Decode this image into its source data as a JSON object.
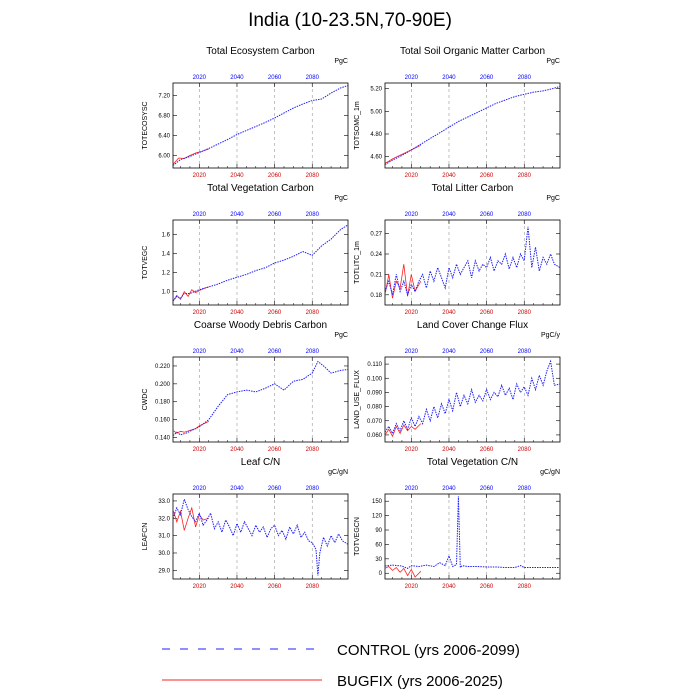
{
  "figure": {
    "title": "India (10-23.5N,70-90E)",
    "colors": {
      "control": "#1f1fff",
      "bugfix": "#ff2020",
      "control_years": "#cc0000",
      "top_years": "#0000ff"
    },
    "legend": [
      {
        "label": "CONTROL (yrs 2006-2099)",
        "color": "#1f1fff",
        "dash": true
      },
      {
        "label": "BUGFIX (yrs 2006-2025)",
        "color": "#ff2020",
        "dash": false
      }
    ]
  },
  "chart_data": [
    {
      "type": "line",
      "title": "Total Ecosystem Carbon",
      "ylabel": "TOTECOSYSC",
      "unit": "PgC",
      "xlim": [
        2006,
        2099
      ],
      "ylim": [
        5.75,
        7.45
      ],
      "yticks": [
        6.0,
        6.4,
        6.8,
        7.2
      ],
      "ytick_labels": [
        "6.00",
        "6.40",
        "6.80",
        "7.20"
      ],
      "xticks": [
        2020,
        2040,
        2060,
        2080
      ],
      "grid": "x-dashed",
      "series": [
        {
          "key": "control",
          "x": [
            2006,
            2010,
            2015,
            2020,
            2025,
            2030,
            2035,
            2040,
            2045,
            2050,
            2055,
            2060,
            2065,
            2070,
            2075,
            2080,
            2085,
            2090,
            2095,
            2099
          ],
          "y": [
            5.8,
            5.92,
            5.98,
            6.06,
            6.14,
            6.23,
            6.32,
            6.42,
            6.5,
            6.58,
            6.66,
            6.75,
            6.85,
            6.95,
            7.03,
            7.1,
            7.13,
            7.25,
            7.35,
            7.4
          ]
        },
        {
          "key": "bugfix",
          "x": [
            2006,
            2009,
            2012,
            2015,
            2018,
            2021,
            2025
          ],
          "y": [
            5.82,
            5.95,
            5.94,
            6.0,
            6.05,
            6.08,
            6.13
          ]
        }
      ]
    },
    {
      "type": "line",
      "title": "Total Soil Organic Matter Carbon",
      "ylabel": "TOTSOMC_1m",
      "unit": "PgC",
      "xlim": [
        2006,
        2099
      ],
      "ylim": [
        4.5,
        5.25
      ],
      "yticks": [
        4.6,
        4.8,
        5.0,
        5.2
      ],
      "ytick_labels": [
        "4.60",
        "4.80",
        "5.00",
        "5.20"
      ],
      "xticks": [
        2020,
        2040,
        2060,
        2080
      ],
      "grid": "x-dashed",
      "series": [
        {
          "key": "control",
          "x": [
            2006,
            2010,
            2015,
            2020,
            2025,
            2030,
            2035,
            2040,
            2045,
            2050,
            2055,
            2060,
            2065,
            2070,
            2075,
            2080,
            2085,
            2090,
            2095,
            2099
          ],
          "y": [
            4.53,
            4.57,
            4.61,
            4.66,
            4.71,
            4.76,
            4.81,
            4.86,
            4.91,
            4.95,
            4.99,
            5.03,
            5.07,
            5.1,
            5.13,
            5.15,
            5.17,
            5.18,
            5.2,
            5.22
          ]
        },
        {
          "key": "bugfix",
          "x": [
            2006,
            2010,
            2015,
            2020,
            2025
          ],
          "y": [
            4.54,
            4.58,
            4.62,
            4.66,
            4.7
          ]
        }
      ]
    },
    {
      "type": "line",
      "title": "Total Vegetation Carbon",
      "ylabel": "TOTVEGC",
      "unit": "PgC",
      "xlim": [
        2006,
        2099
      ],
      "ylim": [
        0.86,
        1.75
      ],
      "yticks": [
        1.0,
        1.2,
        1.4,
        1.6
      ],
      "ytick_labels": [
        "1.0",
        "1.2",
        "1.4",
        "1.6"
      ],
      "xticks": [
        2020,
        2040,
        2060,
        2080
      ],
      "grid": "x-dashed",
      "series": [
        {
          "key": "control",
          "x": [
            2006,
            2008,
            2010,
            2012,
            2015,
            2020,
            2025,
            2030,
            2035,
            2040,
            2045,
            2050,
            2055,
            2060,
            2065,
            2070,
            2075,
            2080,
            2085,
            2090,
            2095,
            2099
          ],
          "y": [
            0.9,
            0.95,
            0.93,
            0.98,
            0.98,
            1.02,
            1.05,
            1.08,
            1.12,
            1.15,
            1.18,
            1.22,
            1.25,
            1.3,
            1.33,
            1.37,
            1.42,
            1.38,
            1.48,
            1.55,
            1.65,
            1.7
          ]
        },
        {
          "key": "bugfix",
          "x": [
            2006,
            2008,
            2010,
            2012,
            2014,
            2016,
            2018,
            2020,
            2022,
            2025
          ],
          "y": [
            0.9,
            0.96,
            0.92,
            1.0,
            0.95,
            1.02,
            0.99,
            1.01,
            1.03,
            1.05
          ]
        }
      ]
    },
    {
      "type": "line",
      "title": "Total Litter Carbon",
      "ylabel": "TOTLITC_1m",
      "unit": "PgC",
      "xlim": [
        2006,
        2099
      ],
      "ylim": [
        0.165,
        0.29
      ],
      "yticks": [
        0.18,
        0.21,
        0.24,
        0.27
      ],
      "ytick_labels": [
        "0.18",
        "0.21",
        "0.24",
        "0.27"
      ],
      "xticks": [
        2020,
        2040,
        2060,
        2080
      ],
      "grid": "x-dashed",
      "series": [
        {
          "key": "control",
          "x": [
            2006,
            2008,
            2010,
            2012,
            2014,
            2016,
            2018,
            2020,
            2022,
            2024,
            2026,
            2028,
            2030,
            2032,
            2034,
            2036,
            2038,
            2040,
            2042,
            2044,
            2046,
            2048,
            2050,
            2052,
            2054,
            2056,
            2058,
            2060,
            2062,
            2064,
            2066,
            2068,
            2070,
            2072,
            2074,
            2076,
            2078,
            2080,
            2082,
            2084,
            2086,
            2088,
            2090,
            2092,
            2094,
            2096,
            2099
          ],
          "y": [
            0.185,
            0.2,
            0.18,
            0.21,
            0.185,
            0.2,
            0.18,
            0.195,
            0.185,
            0.2,
            0.21,
            0.19,
            0.215,
            0.2,
            0.22,
            0.205,
            0.19,
            0.22,
            0.205,
            0.225,
            0.21,
            0.22,
            0.23,
            0.205,
            0.23,
            0.215,
            0.225,
            0.22,
            0.235,
            0.215,
            0.23,
            0.225,
            0.24,
            0.218,
            0.235,
            0.22,
            0.24,
            0.23,
            0.28,
            0.22,
            0.25,
            0.215,
            0.235,
            0.225,
            0.24,
            0.225,
            0.22
          ]
        },
        {
          "key": "bugfix",
          "x": [
            2006,
            2008,
            2010,
            2012,
            2014,
            2016,
            2018,
            2020,
            2022,
            2025
          ],
          "y": [
            0.18,
            0.21,
            0.175,
            0.2,
            0.19,
            0.225,
            0.178,
            0.21,
            0.185,
            0.2
          ]
        }
      ]
    },
    {
      "type": "line",
      "title": "Coarse Woody Debris Carbon",
      "ylabel": "CWDC",
      "unit": "PgC",
      "xlim": [
        2006,
        2099
      ],
      "ylim": [
        0.135,
        0.23
      ],
      "yticks": [
        0.14,
        0.16,
        0.18,
        0.2,
        0.22
      ],
      "ytick_labels": [
        "0.140",
        "0.160",
        "0.180",
        "0.200",
        "0.220"
      ],
      "xticks": [
        2020,
        2040,
        2060,
        2080
      ],
      "grid": "x-dashed",
      "series": [
        {
          "key": "control",
          "x": [
            2006,
            2008,
            2010,
            2013,
            2016,
            2020,
            2025,
            2030,
            2035,
            2040,
            2045,
            2050,
            2055,
            2060,
            2065,
            2070,
            2075,
            2080,
            2083,
            2086,
            2090,
            2095,
            2099
          ],
          "y": [
            0.142,
            0.146,
            0.143,
            0.145,
            0.148,
            0.152,
            0.16,
            0.175,
            0.188,
            0.191,
            0.193,
            0.191,
            0.195,
            0.2,
            0.193,
            0.203,
            0.205,
            0.212,
            0.225,
            0.22,
            0.212,
            0.215,
            0.216
          ]
        },
        {
          "key": "bugfix",
          "x": [
            2006,
            2008,
            2010,
            2012,
            2015,
            2018,
            2020,
            2025
          ],
          "y": [
            0.148,
            0.145,
            0.147,
            0.146,
            0.148,
            0.15,
            0.153,
            0.158
          ]
        }
      ]
    },
    {
      "type": "line",
      "title": "Land Cover Change Flux",
      "ylabel": "LAND_USE_FLUX",
      "unit": "PgC/y",
      "xlim": [
        2006,
        2099
      ],
      "ylim": [
        0.055,
        0.115
      ],
      "yticks": [
        0.06,
        0.07,
        0.08,
        0.09,
        0.1,
        0.11
      ],
      "ytick_labels": [
        "0.060",
        "0.070",
        "0.080",
        "0.090",
        "0.100",
        "0.110"
      ],
      "xticks": [
        2020,
        2040,
        2060,
        2080
      ],
      "grid": "x-dashed",
      "series": [
        {
          "key": "control",
          "x": [
            2006,
            2008,
            2010,
            2012,
            2014,
            2016,
            2018,
            2020,
            2022,
            2024,
            2026,
            2028,
            2030,
            2032,
            2034,
            2036,
            2038,
            2040,
            2042,
            2044,
            2046,
            2048,
            2050,
            2052,
            2054,
            2056,
            2058,
            2060,
            2062,
            2064,
            2066,
            2068,
            2070,
            2072,
            2074,
            2076,
            2078,
            2080,
            2082,
            2084,
            2086,
            2088,
            2090,
            2092,
            2094,
            2096,
            2099
          ],
          "y": [
            0.062,
            0.066,
            0.061,
            0.068,
            0.063,
            0.07,
            0.064,
            0.072,
            0.066,
            0.073,
            0.068,
            0.078,
            0.07,
            0.08,
            0.072,
            0.082,
            0.075,
            0.085,
            0.077,
            0.09,
            0.08,
            0.088,
            0.082,
            0.092,
            0.083,
            0.088,
            0.084,
            0.092,
            0.085,
            0.09,
            0.087,
            0.095,
            0.088,
            0.093,
            0.085,
            0.096,
            0.09,
            0.094,
            0.088,
            0.1,
            0.092,
            0.102,
            0.095,
            0.105,
            0.112,
            0.095,
            0.096
          ]
        },
        {
          "key": "bugfix",
          "x": [
            2006,
            2008,
            2010,
            2012,
            2014,
            2016,
            2018,
            2020,
            2022,
            2025
          ],
          "y": [
            0.06,
            0.064,
            0.059,
            0.066,
            0.061,
            0.067,
            0.063,
            0.066,
            0.064,
            0.068
          ]
        }
      ]
    },
    {
      "type": "line",
      "title": "Leaf C/N",
      "ylabel": "LEAFCN",
      "unit": "gC/gN",
      "xlim": [
        2006,
        2099
      ],
      "ylim": [
        28.5,
        33.4
      ],
      "yticks": [
        29.0,
        30.0,
        31.0,
        32.0,
        33.0
      ],
      "ytick_labels": [
        "29.0",
        "30.0",
        "31.0",
        "32.0",
        "33.0"
      ],
      "xticks": [
        2020,
        2040,
        2060,
        2080
      ],
      "grid": "x-dashed",
      "series": [
        {
          "key": "control",
          "x": [
            2006,
            2008,
            2010,
            2012,
            2014,
            2016,
            2018,
            2020,
            2022,
            2024,
            2026,
            2028,
            2030,
            2032,
            2034,
            2036,
            2038,
            2040,
            2042,
            2044,
            2046,
            2048,
            2050,
            2052,
            2054,
            2056,
            2058,
            2060,
            2062,
            2064,
            2066,
            2068,
            2070,
            2072,
            2074,
            2076,
            2078,
            2080,
            2082,
            2083,
            2084,
            2086,
            2088,
            2090,
            2092,
            2094,
            2096,
            2099
          ],
          "y": [
            32.0,
            32.6,
            32.2,
            33.1,
            32.5,
            32.1,
            31.8,
            32.3,
            31.6,
            31.9,
            32.3,
            31.4,
            31.8,
            31.2,
            31.9,
            31.5,
            31.0,
            31.7,
            31.2,
            31.8,
            31.4,
            31.0,
            31.6,
            31.2,
            31.5,
            30.9,
            31.4,
            31.6,
            31.0,
            31.3,
            30.8,
            31.5,
            31.1,
            31.6,
            30.9,
            31.2,
            30.7,
            30.6,
            30.2,
            28.7,
            30.0,
            30.9,
            30.4,
            31.0,
            30.6,
            31.1,
            30.7,
            30.5
          ]
        },
        {
          "key": "bugfix",
          "x": [
            2006,
            2008,
            2010,
            2012,
            2014,
            2016,
            2018,
            2020,
            2022,
            2025
          ],
          "y": [
            32.5,
            31.8,
            32.4,
            31.3,
            32.0,
            32.6,
            31.5,
            32.2,
            31.9,
            32.0
          ]
        }
      ]
    },
    {
      "type": "line",
      "title": "Total Vegetation C/N",
      "ylabel": "TOTVEGCN",
      "unit": "gC/gN",
      "xlim": [
        2006,
        2099
      ],
      "ylim": [
        -12,
        165
      ],
      "yticks": [
        0,
        30,
        60,
        90,
        120,
        150
      ],
      "ytick_labels": [
        "0",
        "30",
        "60",
        "90",
        "120",
        "150"
      ],
      "xticks": [
        2020,
        2040,
        2060,
        2080
      ],
      "grid": "x-dashed",
      "series": [
        {
          "key": "control",
          "x": [
            2006,
            2010,
            2015,
            2018,
            2020,
            2024,
            2028,
            2032,
            2035,
            2038,
            2040,
            2042,
            2044,
            2045,
            2046,
            2047,
            2050,
            2055,
            2060,
            2065,
            2070,
            2075,
            2078,
            2080,
            2085,
            2090,
            2095,
            2099
          ],
          "y": [
            15,
            17,
            15,
            10,
            16,
            14,
            17,
            14,
            22,
            16,
            36,
            14,
            18,
            160,
            12,
            16,
            14,
            14,
            13,
            13,
            12,
            12,
            16,
            12,
            12,
            12,
            12,
            12
          ]
        },
        {
          "key": "bugfix",
          "x": [
            2006,
            2008,
            2010,
            2012,
            2014,
            2016,
            2018,
            2020,
            2022,
            2025
          ],
          "y": [
            10,
            14,
            6,
            12,
            2,
            10,
            -5,
            8,
            -8,
            4
          ]
        }
      ]
    }
  ]
}
